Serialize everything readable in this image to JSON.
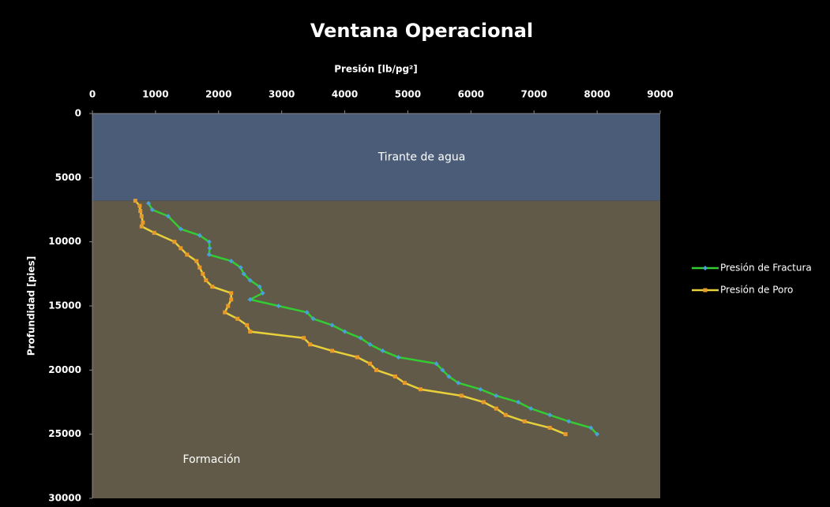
{
  "chart_data": {
    "type": "line",
    "title": "Ventana Operacional",
    "x_label": "Presión [lb/pg²]",
    "y_label": "Profundidad [pies]",
    "xlim": [
      0,
      9000
    ],
    "xticks": [
      0,
      1000,
      2000,
      3000,
      4000,
      5000,
      6000,
      7000,
      8000,
      9000
    ],
    "ylim": [
      0,
      30000
    ],
    "yticks": [
      0,
      5000,
      10000,
      15000,
      20000,
      25000,
      30000
    ],
    "y_inverted": true,
    "x_axis_position": "top",
    "legend": "right",
    "regions": [
      {
        "label": "Tirante de agua",
        "from": 0,
        "to": 6800,
        "color": "#4a5c78"
      },
      {
        "label": "Formación",
        "from": 6800,
        "to": 30000,
        "color": "#615a48"
      }
    ],
    "series": [
      {
        "name": "Presión de Fractura",
        "color": "#33cc33",
        "marker_color": "#4aa0d8",
        "marker": "diamond",
        "x": [
          890,
          950,
          1200,
          1400,
          1700,
          1850,
          1860,
          1850,
          2200,
          2350,
          2400,
          2500,
          2650,
          2700,
          2500,
          2950,
          3400,
          3500,
          3800,
          4000,
          4250,
          4400,
          4600,
          4850,
          5450,
          5550,
          5650,
          5800,
          6150,
          6400,
          6750,
          6950,
          7250,
          7550,
          7900,
          8000
        ],
        "y": [
          7000,
          7500,
          8000,
          9000,
          9500,
          10000,
          10500,
          11000,
          11500,
          12000,
          12500,
          13000,
          13500,
          14000,
          14500,
          15000,
          15500,
          16000,
          16500,
          17000,
          17500,
          18000,
          18500,
          19000,
          19500,
          20000,
          20500,
          21000,
          21500,
          22000,
          22500,
          23000,
          23500,
          24000,
          24500,
          25000
        ]
      },
      {
        "name": "Presión de Poro",
        "color": "#e8d03a",
        "marker_color": "#e89a2a",
        "marker": "square",
        "x": [
          680,
          750,
          760,
          780,
          800,
          780,
          980,
          1300,
          1400,
          1500,
          1650,
          1700,
          1750,
          1800,
          1900,
          2200,
          2200,
          2150,
          2100,
          2300,
          2450,
          2500,
          3350,
          3450,
          3800,
          4200,
          4400,
          4500,
          4800,
          4950,
          5200,
          5850,
          6200,
          6400,
          6550,
          6850,
          7250,
          7500
        ],
        "y": [
          6800,
          7200,
          7600,
          8000,
          8500,
          8800,
          9300,
          10000,
          10500,
          11000,
          11500,
          12000,
          12500,
          13000,
          13500,
          14000,
          14500,
          15000,
          15500,
          16000,
          16500,
          17000,
          17500,
          18000,
          18500,
          19000,
          19500,
          20000,
          20500,
          21000,
          21500,
          22000,
          22500,
          23000,
          23500,
          24000,
          24500,
          25000
        ]
      }
    ]
  }
}
